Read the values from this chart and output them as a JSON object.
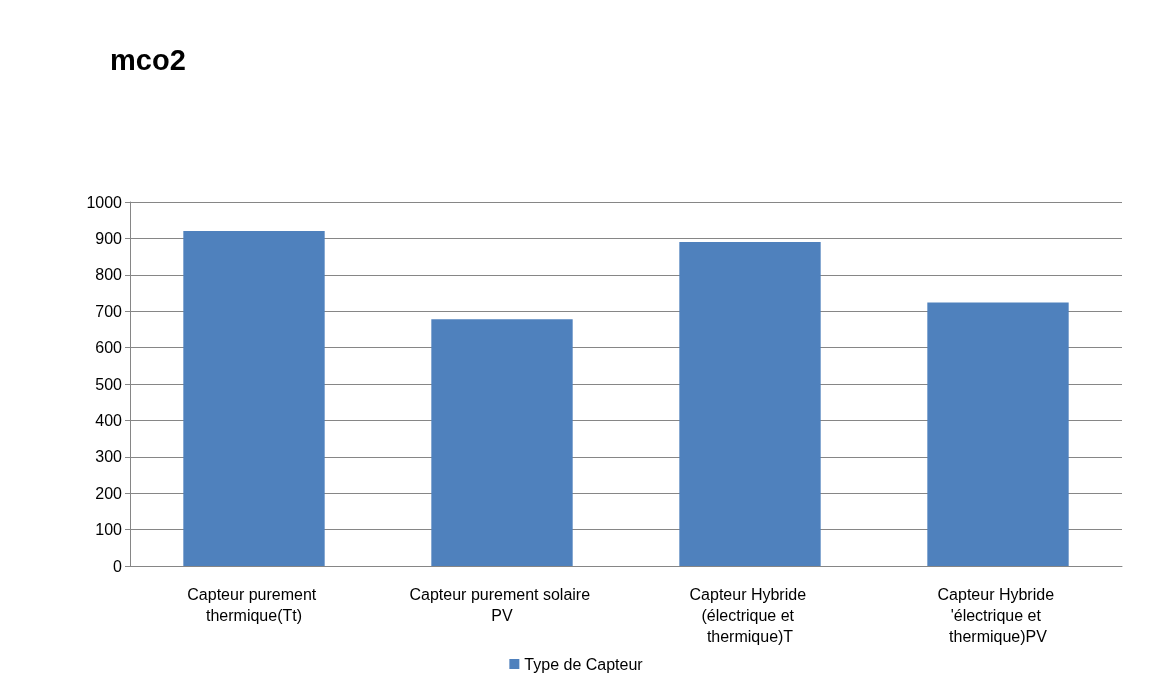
{
  "chart_data": {
    "type": "bar",
    "title": "mco2",
    "categories": [
      "Capteur purement thermique(Tt)",
      "Capteur purement solaire PV",
      "Capteur Hybride (électrique et thermique)T",
      "Capteur Hybride 'électrique et thermique)PV"
    ],
    "series": [
      {
        "name": "Type de Capteur",
        "color": "#4f81bd",
        "values": [
          920,
          678,
          890,
          724
        ]
      }
    ],
    "ylim": [
      0,
      1000
    ],
    "yticks": [
      0,
      100,
      200,
      300,
      400,
      500,
      600,
      700,
      800,
      900,
      1000
    ],
    "grid": "y",
    "legend": "bottom"
  }
}
